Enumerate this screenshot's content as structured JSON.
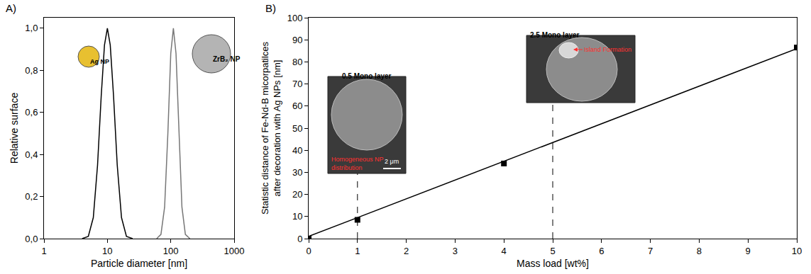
{
  "chart_data": [
    {
      "type": "line",
      "panel_label": "A)",
      "x_label": "Particle diameter [nm]",
      "y_label": "Relative surface",
      "log": "x",
      "grid": false,
      "xlim": [
        1,
        1000
      ],
      "xticks": [
        1,
        10,
        100,
        1000
      ],
      "ylim": [
        0,
        1.05
      ],
      "yticks": [
        {
          "value": 0,
          "label": "0,0"
        },
        {
          "value": 0.2,
          "label": "0,2"
        },
        {
          "value": 0.4,
          "label": "0,4"
        },
        {
          "value": 0.6,
          "label": "0,6"
        },
        {
          "value": 0.8,
          "label": "0,8"
        },
        {
          "value": 1.0,
          "label": "1,0"
        }
      ],
      "annotations": [
        "Ag NP",
        "ZrB₂ NP"
      ],
      "series": [
        {
          "color": "#000000",
          "x": [
            4,
            5,
            6,
            7,
            8,
            9,
            10,
            11.1,
            12.5,
            14.3,
            16.7,
            20,
            25
          ],
          "values": [
            0,
            0.01,
            0.1,
            0.35,
            0.68,
            0.92,
            1.0,
            0.92,
            0.68,
            0.35,
            0.1,
            0.01,
            0
          ]
        },
        {
          "color": "#777777",
          "x": [
            60,
            70,
            80,
            90,
            100,
            110,
            121,
            134,
            150,
            170,
            200
          ],
          "values": [
            0,
            0.02,
            0.15,
            0.5,
            0.88,
            1.0,
            0.88,
            0.5,
            0.15,
            0.02,
            0
          ]
        }
      ]
    },
    {
      "type": "scatter",
      "panel_label": "B)",
      "x_label": "Mass load [wt%]",
      "y_label": "Statistic distance of Fe-Nd-B micorpatilces after decoration with Ag NPs [nm]",
      "grid": false,
      "xlim": [
        0,
        10
      ],
      "xticks": [
        0,
        1,
        2,
        3,
        4,
        5,
        6,
        7,
        8,
        9,
        10
      ],
      "ylim": [
        0,
        100
      ],
      "yticks": [
        0,
        10,
        20,
        30,
        40,
        50,
        60,
        70,
        80,
        90,
        100
      ],
      "series": [
        {
          "type": "scatter",
          "marker": "square",
          "color": "#000000",
          "x": [
            0,
            1,
            4,
            10
          ],
          "values": [
            0,
            8.5,
            34,
            86.5
          ]
        },
        {
          "type": "line",
          "color": "#000000",
          "x": [
            0,
            10
          ],
          "values": [
            1,
            86
          ]
        }
      ],
      "insets": [
        {
          "title": "0.5 Mono layer",
          "note": "Homogeneous NP distribution",
          "scale_bar": "2 μm",
          "mass_load": 1
        },
        {
          "title": "2.5 Mono layer",
          "note": "Island Formation",
          "mass_load": 5
        }
      ]
    }
  ]
}
